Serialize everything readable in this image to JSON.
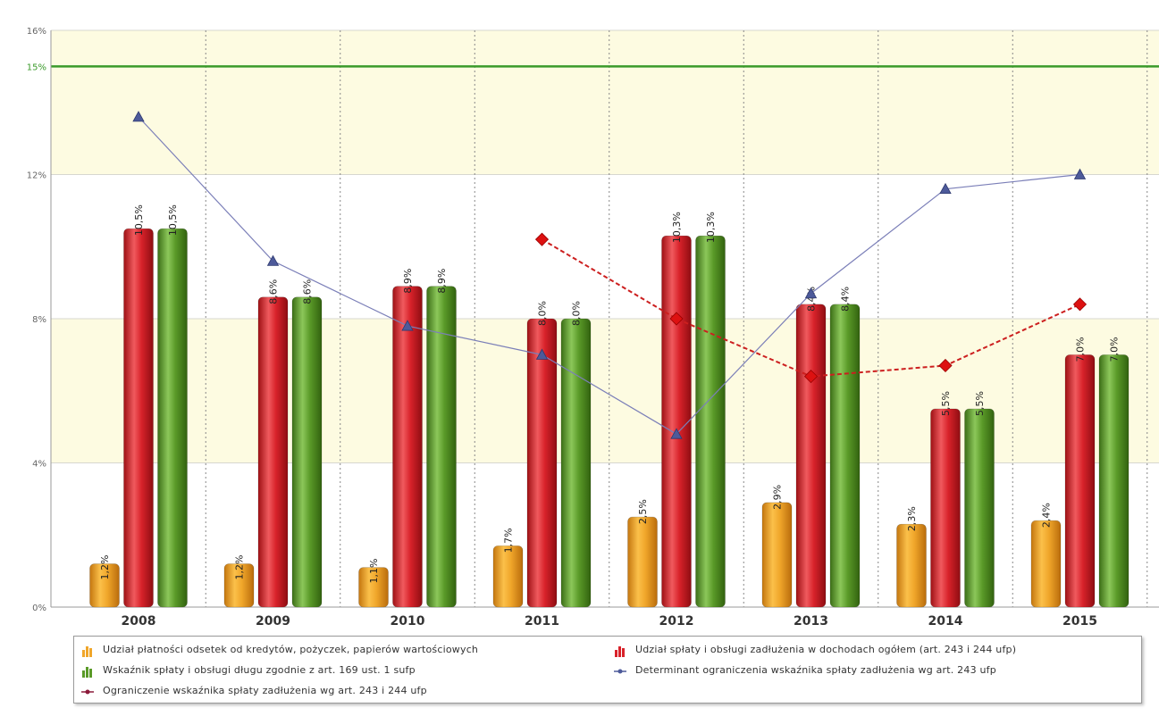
{
  "chart_data": {
    "type": "bar",
    "title": "",
    "xlabel": "",
    "ylabel": "",
    "categories": [
      "2008",
      "2009",
      "2010",
      "2011",
      "2012",
      "2013",
      "2014",
      "2015"
    ],
    "y_ticks": [
      {
        "value": 0,
        "label": "0%"
      },
      {
        "value": 4,
        "label": "4%"
      },
      {
        "value": 8,
        "label": "8%"
      },
      {
        "value": 12,
        "label": "12%"
      },
      {
        "value": 16,
        "label": "16%"
      }
    ],
    "ylim": [
      0,
      16
    ],
    "reference_line": {
      "value": 15,
      "label": "15%",
      "color": "#3a9a2a"
    },
    "bands": [
      {
        "from": 12,
        "to": 16,
        "color": "#fdfbe1"
      },
      {
        "from": 8,
        "to": 12,
        "color": "#ffffff"
      },
      {
        "from": 4,
        "to": 8,
        "color": "#fdfbe1"
      },
      {
        "from": 0,
        "to": 4,
        "color": "#ffffff"
      }
    ],
    "bar_series": [
      {
        "name": "Udział płatności odsetek od kredytów, pożyczek, papierów wartościowych",
        "color": "#f0a62a",
        "values": [
          1.2,
          1.2,
          1.1,
          1.7,
          2.5,
          2.9,
          2.3,
          2.4
        ],
        "labels": [
          "1,2%",
          "1,2%",
          "1,1%",
          "1,7%",
          "2,5%",
          "2,9%",
          "2,3%",
          "2,4%"
        ]
      },
      {
        "name": "Udział spłaty i obsługi zadłużenia w dochodach ogółem (art. 243 i 244 ufp)",
        "color": "#d8222a",
        "values": [
          10.5,
          8.6,
          8.9,
          8.0,
          10.3,
          8.4,
          5.5,
          7.0
        ],
        "labels": [
          "10,5%",
          "8,6%",
          "8,9%",
          "8,0%",
          "10,3%",
          "8,4%",
          "5,5%",
          "7,0%"
        ]
      },
      {
        "name": "Wskaźnik spłaty i obsługi długu zgodnie z art. 169 ust. 1 sufp",
        "color": "#5a9a28",
        "values": [
          10.5,
          8.6,
          8.9,
          8.0,
          10.3,
          8.4,
          5.5,
          7.0
        ],
        "labels": [
          "10,5%",
          "8,6%",
          "8,9%",
          "8,0%",
          "10,3%",
          "8,4%",
          "5,5%",
          "7,0%"
        ]
      }
    ],
    "line_series": [
      {
        "name": "Determinant ograniczenia wskaźnika spłaty zadłużenia wg art. 243 ufp",
        "color": "#7b7fb8",
        "marker": "triangle",
        "marker_color": "#4d5a9a",
        "dashed": false,
        "values": [
          13.6,
          9.6,
          7.8,
          7.0,
          4.8,
          8.7,
          11.6,
          12.0
        ]
      },
      {
        "name": "Ograniczenie wskaźnika spłaty zadłużenia wg art. 243 i 244 ufp",
        "color": "#cc1f1f",
        "marker": "diamond",
        "marker_color": "#dd1111",
        "dashed": true,
        "values": [
          null,
          null,
          null,
          10.2,
          8.0,
          6.4,
          6.7,
          8.4
        ]
      }
    ]
  },
  "legend": [
    {
      "label": "Udział płatności odsetek od kredytów, pożyczek, papierów wartościowych",
      "icon": "orange-bars-icon",
      "color": "#f0a62a"
    },
    {
      "label": "Udział spłaty i obsługi zadłużenia w dochodach ogółem (art. 243 i 244 ufp)",
      "icon": "red-bars-icon",
      "color": "#d8222a"
    },
    {
      "label": "Wskaźnik spłaty i obsługi długu zgodnie z art. 169 ust. 1 sufp",
      "icon": "green-bars-icon",
      "color": "#5a9a28"
    },
    {
      "label": "Determinant ograniczenia wskaźnika spłaty zadłużenia wg art. 243 ufp",
      "icon": "line-marker-icon",
      "color": "#4d5a9a"
    },
    {
      "label": "Ograniczenie wskaźnika spłaty zadłużenia wg art. 243 i 244 ufp",
      "icon": "line-marker-icon",
      "color": "#8b1a3a"
    }
  ]
}
